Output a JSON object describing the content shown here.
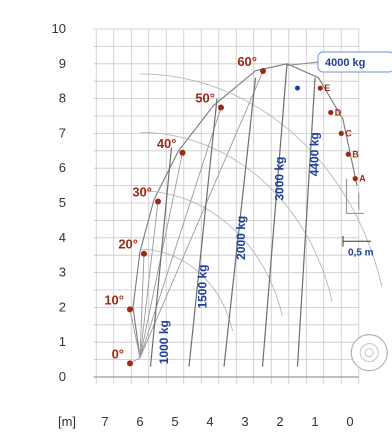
{
  "chart_data": {
    "type": "scatter",
    "title": "",
    "xlabel": "[m]",
    "ylabel": "",
    "x_ticks": [
      7,
      6,
      5,
      4,
      3,
      2,
      1,
      0
    ],
    "y_ticks": [
      0,
      1,
      2,
      3,
      4,
      5,
      6,
      7,
      8,
      9,
      10
    ],
    "xlim": [
      0,
      7.5
    ],
    "ylim": [
      0,
      10
    ],
    "x_reversed": true,
    "grid": true,
    "boom_angles": [
      {
        "label": "0°",
        "x": 6.4,
        "y": 0.45
      },
      {
        "label": "10°",
        "x": 6.4,
        "y": 2.0
      },
      {
        "label": "20°",
        "x": 6.0,
        "y": 3.6
      },
      {
        "label": "30°",
        "x": 5.6,
        "y": 5.1
      },
      {
        "label": "40°",
        "x": 4.9,
        "y": 6.5
      },
      {
        "label": "50°",
        "x": 3.8,
        "y": 7.8
      },
      {
        "label": "60°",
        "x": 2.6,
        "y": 8.85
      }
    ],
    "load_zones": [
      {
        "label": "1000 kg",
        "x": 5.2,
        "y": 1.0
      },
      {
        "label": "1500 kg",
        "x": 4.1,
        "y": 2.6
      },
      {
        "label": "2000 kg",
        "x": 3.0,
        "y": 4.0
      },
      {
        "label": "3000 kg",
        "x": 1.9,
        "y": 5.7
      },
      {
        "label": "4400 kg",
        "x": 0.9,
        "y": 6.4
      }
    ],
    "top_capacity": "4000 kg",
    "attachment_points": [
      {
        "label": "E",
        "x": 0.85,
        "y": 8.3
      },
      {
        "label": "D",
        "x": 0.55,
        "y": 7.6
      },
      {
        "label": "C",
        "x": 0.25,
        "y": 7.0
      },
      {
        "label": "B",
        "x": 0.05,
        "y": 6.4
      },
      {
        "label": "A",
        "x": -0.15,
        "y": 5.7
      }
    ],
    "span_label": "0,5 m"
  },
  "colors": {
    "angle": "#9b2a12",
    "capacity": "#1c3f9a",
    "grid": "#c8c8c8",
    "axis": "#555555"
  }
}
